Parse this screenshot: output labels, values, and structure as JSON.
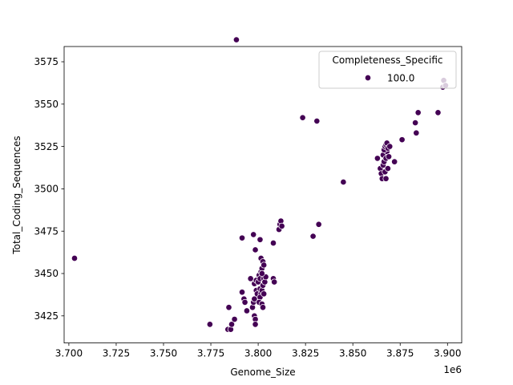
{
  "chart_data": {
    "type": "scatter",
    "xlabel": "Genome_Size",
    "ylabel": "Total_Coding_Sequences",
    "x_offset_label": "1e6",
    "xlim": [
      3.6975,
      3.9075
    ],
    "ylim": [
      3409,
      3584
    ],
    "xticks": [
      3.7,
      3.725,
      3.75,
      3.775,
      3.8,
      3.825,
      3.85,
      3.875,
      3.9
    ],
    "xtick_labels": [
      "3.700",
      "3.725",
      "3.750",
      "3.775",
      "3.800",
      "3.825",
      "3.850",
      "3.875",
      "3.900"
    ],
    "yticks": [
      3425,
      3450,
      3475,
      3500,
      3525,
      3550,
      3575
    ],
    "ytick_labels": [
      "3425",
      "3450",
      "3475",
      "3500",
      "3525",
      "3550",
      "3575"
    ],
    "grid": false,
    "legend": {
      "title": "Completeness_Specific",
      "placement": "upper right",
      "entries": [
        "100.0"
      ]
    },
    "marker_color": "#440154",
    "series": [
      {
        "name": "100.0",
        "points": [
          [
            3.703,
            3459
          ],
          [
            3.7885,
            3588
          ],
          [
            3.7745,
            3420
          ],
          [
            3.784,
            3417
          ],
          [
            3.7855,
            3417
          ],
          [
            3.786,
            3420
          ],
          [
            3.7875,
            3423
          ],
          [
            3.7845,
            3430
          ],
          [
            3.7915,
            3439
          ],
          [
            3.7925,
            3435
          ],
          [
            3.793,
            3433
          ],
          [
            3.794,
            3428
          ],
          [
            3.796,
            3447
          ],
          [
            3.797,
            3430
          ],
          [
            3.7975,
            3433
          ],
          [
            3.798,
            3435
          ],
          [
            3.798,
            3425
          ],
          [
            3.7985,
            3423
          ],
          [
            3.7985,
            3420
          ],
          [
            3.798,
            3444
          ],
          [
            3.799,
            3440
          ],
          [
            3.7995,
            3438
          ],
          [
            3.799,
            3446
          ],
          [
            3.8,
            3445
          ],
          [
            3.8005,
            3449
          ],
          [
            3.801,
            3447
          ],
          [
            3.8015,
            3451
          ],
          [
            3.802,
            3453
          ],
          [
            3.801,
            3441
          ],
          [
            3.8015,
            3438
          ],
          [
            3.802,
            3440
          ],
          [
            3.8025,
            3443
          ],
          [
            3.801,
            3436
          ],
          [
            3.8005,
            3433
          ],
          [
            3.802,
            3432
          ],
          [
            3.8025,
            3430
          ],
          [
            3.803,
            3447
          ],
          [
            3.8035,
            3445
          ],
          [
            3.803,
            3438
          ],
          [
            3.804,
            3448
          ],
          [
            3.8015,
            3459
          ],
          [
            3.8025,
            3457
          ],
          [
            3.803,
            3455
          ],
          [
            3.802,
            3450
          ],
          [
            3.808,
            3447
          ],
          [
            3.8085,
            3445
          ],
          [
            3.808,
            3468
          ],
          [
            3.7915,
            3471
          ],
          [
            3.7975,
            3473
          ],
          [
            3.7985,
            3464
          ],
          [
            3.801,
            3470
          ],
          [
            3.811,
            3476
          ],
          [
            3.8115,
            3479
          ],
          [
            3.812,
            3481
          ],
          [
            3.8125,
            3478
          ],
          [
            3.8235,
            3542
          ],
          [
            3.831,
            3540
          ],
          [
            3.829,
            3472
          ],
          [
            3.832,
            3479
          ],
          [
            3.845,
            3504
          ],
          [
            3.863,
            3518
          ],
          [
            3.8645,
            3512
          ],
          [
            3.865,
            3509
          ],
          [
            3.8655,
            3506
          ],
          [
            3.866,
            3514
          ],
          [
            3.8665,
            3516
          ],
          [
            3.866,
            3520
          ],
          [
            3.867,
            3510
          ],
          [
            3.8675,
            3518
          ],
          [
            3.868,
            3522
          ],
          [
            3.8665,
            3523
          ],
          [
            3.867,
            3525
          ],
          [
            3.8675,
            3526
          ],
          [
            3.868,
            3527
          ],
          [
            3.8685,
            3524
          ],
          [
            3.869,
            3519
          ],
          [
            3.8695,
            3525
          ],
          [
            3.8685,
            3512
          ],
          [
            3.8675,
            3506
          ],
          [
            3.872,
            3516
          ],
          [
            3.876,
            3529
          ],
          [
            3.883,
            3539
          ],
          [
            3.8835,
            3533
          ],
          [
            3.8845,
            3545
          ],
          [
            3.895,
            3545
          ],
          [
            3.8975,
            3560
          ],
          [
            3.898,
            3564
          ],
          [
            3.899,
            3561
          ]
        ]
      }
    ]
  }
}
